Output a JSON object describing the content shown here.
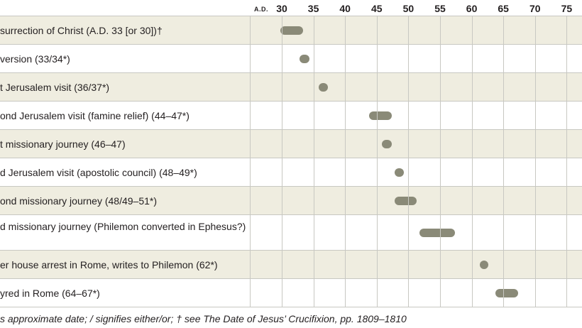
{
  "chart_data": {
    "type": "timeline",
    "axis_prefix": "A.D.",
    "ticks": [
      30,
      35,
      40,
      45,
      50,
      55,
      60,
      65,
      70,
      75
    ],
    "xlim": [
      25,
      77
    ],
    "events": [
      {
        "label": "surrection of Christ (A.D. 33 [or 30])†",
        "start": 30,
        "end": 33
      },
      {
        "label": "version (33/34*)",
        "start": 33,
        "end": 34
      },
      {
        "label": "t Jerusalem visit (36/37*)",
        "start": 36,
        "end": 37
      },
      {
        "label": "ond Jerusalem visit (famine relief) (44–47*)",
        "start": 44,
        "end": 47
      },
      {
        "label": "t missionary journey (46–47)",
        "start": 46,
        "end": 47
      },
      {
        "label": "d Jerusalem visit (apostolic council) (48–49*)",
        "start": 48,
        "end": 49
      },
      {
        "label": "ond missionary journey (48/49–51*)",
        "start": 48,
        "end": 51
      },
      {
        "label": "d missionary journey (Philemon converted in Ephesus?)",
        "start": 52,
        "end": 57
      },
      {
        "label": "er house arrest in Rome, writes to Philemon (62*)",
        "start": 62,
        "end": 62
      },
      {
        "label": "yred in Rome (64–67*)",
        "start": 64,
        "end": 67
      }
    ],
    "footnote": "s approximate date; / signifies either/or; † see The Date of Jesus’ Crucifixion, pp. 1809–1810",
    "colors": {
      "bar": "#8a8a78",
      "alt_row": "#efede0"
    }
  }
}
